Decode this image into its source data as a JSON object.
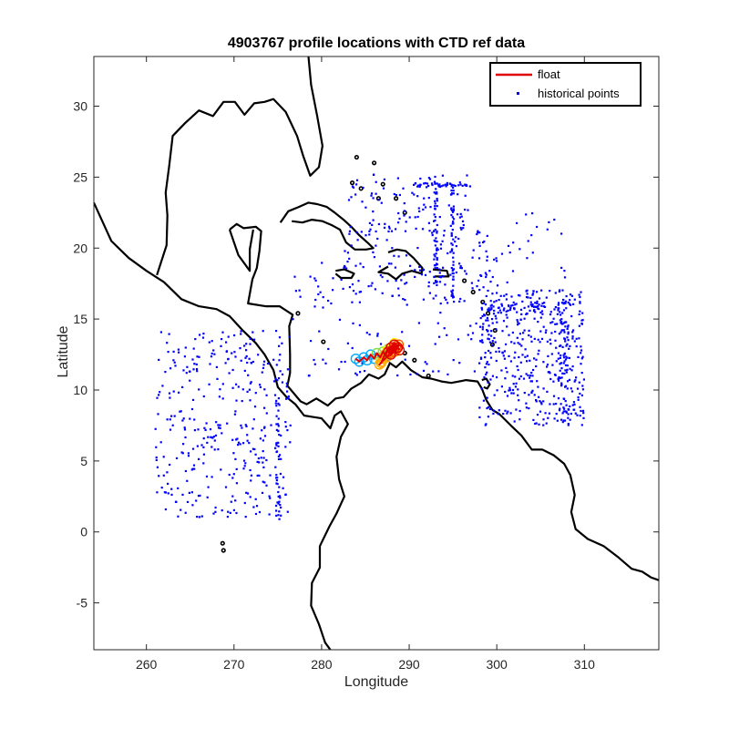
{
  "chart_data": {
    "type": "scatter",
    "title": "4903767 profile locations with CTD ref data",
    "xlabel": "Longitude",
    "ylabel": "Latitude",
    "xlim": [
      254,
      318.5
    ],
    "ylim": [
      -8.3,
      33.5
    ],
    "xticks": [
      260,
      270,
      280,
      290,
      300,
      310
    ],
    "yticks": [
      -5,
      0,
      5,
      10,
      15,
      20,
      25,
      30
    ],
    "xtick_labels": [
      "260",
      "270",
      "280",
      "290",
      "300",
      "310"
    ],
    "ytick_labels": [
      "-5",
      "0",
      "5",
      "10",
      "15",
      "20",
      "25",
      "30"
    ],
    "grid": false,
    "legend": {
      "placement": "top-right",
      "entries": [
        {
          "label": "float",
          "color": "#e00000",
          "marker": "line"
        },
        {
          "label": "historical points",
          "color": "#0000ff",
          "marker": "dot"
        }
      ]
    },
    "colors": {
      "float": "#e00000",
      "historical": "#0000ff",
      "coast": "#000000",
      "float_gradient": [
        "#00aaff",
        "#88dd44",
        "#ffee00",
        "#ffaa00",
        "#ff5500",
        "#dd0000"
      ]
    },
    "series": [
      {
        "name": "float",
        "type": "line",
        "points": [
          [
            283.9,
            12.2
          ],
          [
            284.3,
            12.0
          ],
          [
            284.8,
            12.3
          ],
          [
            285.2,
            12.1
          ],
          [
            285.6,
            12.5
          ],
          [
            286.0,
            12.2
          ],
          [
            286.3,
            12.6
          ],
          [
            286.7,
            12.3
          ],
          [
            287.0,
            12.7
          ],
          [
            287.3,
            12.4
          ],
          [
            287.6,
            12.9
          ],
          [
            287.9,
            12.6
          ],
          [
            288.1,
            13.0
          ],
          [
            288.4,
            12.7
          ],
          [
            288.6,
            13.1
          ],
          [
            288.3,
            13.3
          ],
          [
            287.9,
            13.0
          ],
          [
            287.5,
            12.8
          ],
          [
            287.2,
            12.5
          ],
          [
            287.0,
            12.2
          ],
          [
            286.8,
            11.9
          ],
          [
            286.6,
            11.8
          ],
          [
            286.9,
            12.0
          ],
          [
            287.4,
            12.3
          ],
          [
            287.8,
            12.6
          ],
          [
            288.2,
            12.9
          ],
          [
            288.5,
            13.1
          ],
          [
            288.8,
            13.2
          ],
          [
            288.6,
            12.9
          ],
          [
            288.3,
            12.7
          ],
          [
            287.9,
            12.5
          ],
          [
            287.6,
            12.7
          ],
          [
            287.9,
            13.0
          ],
          [
            288.3,
            13.2
          ],
          [
            288.7,
            13.0
          ],
          [
            288.9,
            12.8
          ]
        ]
      },
      {
        "name": "historical points",
        "type": "scatter",
        "groups": [
          {
            "region": "eastern-pacific",
            "lon": [
              261,
              276.5
            ],
            "lat": [
              1,
              14.2
            ],
            "count": 360
          },
          {
            "region": "eastern-pacific-line",
            "lon": [
              274.8,
              275.3
            ],
            "lat": [
              0.9,
              10
            ],
            "count": 40
          },
          {
            "region": "gulf-of-mexico-east",
            "lon": [
              283,
              297
            ],
            "lat": [
              21,
              25.3
            ],
            "count": 90
          },
          {
            "region": "bahamas-line",
            "lon": [
              290.5,
              297
            ],
            "lat": [
              24.3,
              24.6
            ],
            "count": 40
          },
          {
            "region": "bahamas-meridional-1",
            "lon": [
              292.8,
              293.2
            ],
            "lat": [
              17,
              25
            ],
            "count": 50
          },
          {
            "region": "bahamas-meridional-2",
            "lon": [
              294.8,
              295.1
            ],
            "lat": [
              16.5,
              24.5
            ],
            "count": 50
          },
          {
            "region": "greater-antilles",
            "lon": [
              281,
              299
            ],
            "lat": [
              16,
              22
            ],
            "count": 130
          },
          {
            "region": "central-caribbean",
            "lon": [
              276,
              300
            ],
            "lat": [
              11,
              19
            ],
            "count": 110
          },
          {
            "region": "lesser-antilles-line",
            "lon": [
              299.5,
              308.5
            ],
            "lat": [
              15.3,
              16.3
            ],
            "count": 60
          },
          {
            "region": "atlantic-east",
            "lon": [
              298,
              310
            ],
            "lat": [
              7.5,
              17
            ],
            "count": 420
          },
          {
            "region": "atlantic-meridional",
            "lon": [
              307,
              308.2
            ],
            "lat": [
              7.5,
              15
            ],
            "count": 60
          },
          {
            "region": "atlantic-upper",
            "lon": [
              297,
              308
            ],
            "lat": [
              17,
              22.5
            ],
            "count": 40
          }
        ]
      }
    ]
  }
}
